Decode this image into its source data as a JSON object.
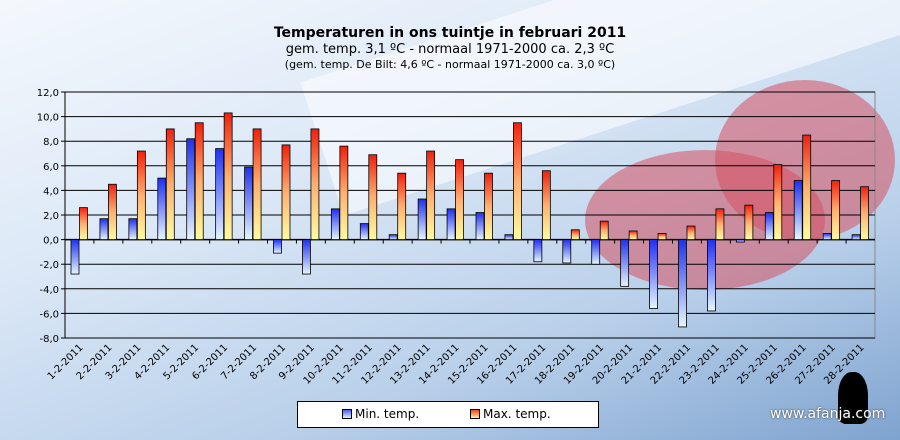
{
  "chart_data": {
    "type": "bar",
    "title": "Temperaturen  in ons tuintje in februari 2011",
    "subtitle": "gem.  temp. 3,1 ºC  - normaal  1971-2000  ca. 2,3 ºC",
    "subtitle2": "(gem. temp. De Bilt: 4,6 ºC - normaal 1971-2000 ca. 3,0 ºC)",
    "xlabel": "",
    "ylabel": "",
    "ylim": [
      -8,
      12
    ],
    "yticks": [
      "12,0",
      "10,0",
      "8,0",
      "6,0",
      "4,0",
      "2,0",
      "0,0",
      "-2,0",
      "-4,0",
      "-6,0",
      "-8,0"
    ],
    "grid": true,
    "legend_position": "bottom",
    "categories": [
      "1-2-2011",
      "2-2-2011",
      "3-2-2011",
      "4-2-2011",
      "5-2-2011",
      "6-2-2011",
      "7-2-2011",
      "8-2-2011",
      "9-2-2011",
      "10-2-2011",
      "11-2-2011",
      "12-2-2011",
      "13-2-2011",
      "14-2-2011",
      "15-2-2011",
      "16-2-2011",
      "17-2-2011",
      "18-2-2011",
      "19-2-2011",
      "20-2-2011",
      "21-2-2011",
      "22-2-2011",
      "23-2-2011",
      "24-2-2011",
      "25-2-2011",
      "26-2-2011",
      "27-2-2011",
      "28-2-2011"
    ],
    "series": [
      {
        "name": "Min. temp.",
        "color": "#2a3cf0",
        "values": [
          -2.8,
          1.7,
          1.7,
          5.0,
          8.2,
          7.4,
          5.9,
          -1.1,
          -2.8,
          2.5,
          1.3,
          0.4,
          3.3,
          2.5,
          2.2,
          0.4,
          -1.8,
          -1.9,
          -2.0,
          -3.8,
          -5.6,
          -7.1,
          -5.8,
          -0.2,
          2.2,
          4.8,
          0.5,
          0.4
        ]
      },
      {
        "name": "Max. temp.",
        "color": "#f02a10",
        "values": [
          2.6,
          4.5,
          7.2,
          9.0,
          9.5,
          10.3,
          9.0,
          7.7,
          9.0,
          7.6,
          6.9,
          5.4,
          7.2,
          6.5,
          5.4,
          9.5,
          5.6,
          0.8,
          1.5,
          0.7,
          0.5,
          1.1,
          2.5,
          2.8,
          6.1,
          8.5,
          4.8,
          4.3
        ]
      }
    ]
  },
  "watermark": "www.afanja.com"
}
